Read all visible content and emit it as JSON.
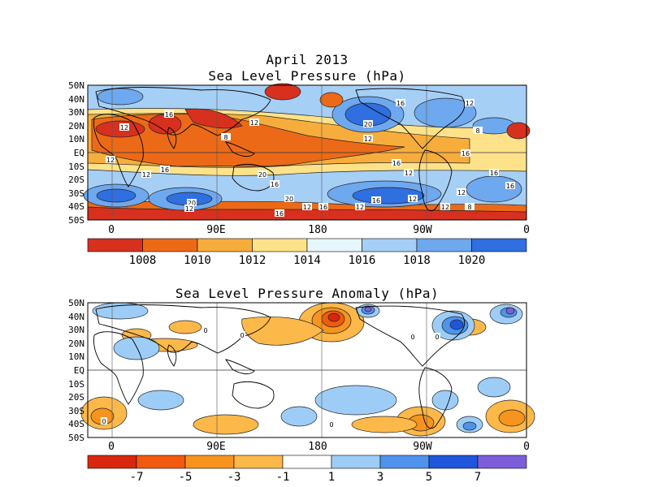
{
  "main_title": "April 2013",
  "panel1": {
    "title": "Sea Level Pressure (hPa)",
    "lat_labels": [
      "50N",
      "40N",
      "30N",
      "20N",
      "10N",
      "EQ",
      "10S",
      "20S",
      "30S",
      "40S",
      "50S"
    ],
    "lon_labels": [
      "0",
      "90E",
      "180",
      "90W",
      "0"
    ],
    "colorbar": {
      "labels": [
        "1008",
        "1010",
        "1012",
        "1014",
        "1016",
        "1018",
        "1020"
      ],
      "colors": [
        "#d7301f",
        "#ec6a17",
        "#f7ad3c",
        "#fde28a",
        "#e6f7fc",
        "#a6cff6",
        "#6ea8ee",
        "#2f6fe0"
      ]
    },
    "contour_labels": [
      "12",
      "16",
      "8",
      "12",
      "20",
      "16",
      "12",
      "12",
      "16",
      "12",
      "8",
      "16",
      "12",
      "12",
      "16",
      "20",
      "16",
      "20",
      "12",
      "16",
      "12",
      "16",
      "12",
      "12",
      "8",
      "16",
      "16",
      "12",
      "20",
      "12",
      "16"
    ]
  },
  "panel2": {
    "title": "Sea Level Pressure Anomaly (hPa)",
    "lat_labels": [
      "50N",
      "40N",
      "30N",
      "20N",
      "10N",
      "EQ",
      "10S",
      "20S",
      "30S",
      "40S",
      "50S"
    ],
    "lon_labels": [
      "0",
      "90E",
      "180",
      "90W",
      "0"
    ],
    "colorbar": {
      "labels": [
        "-7",
        "-5",
        "-3",
        "-1",
        "1",
        "3",
        "5",
        "7"
      ],
      "colors": [
        "#d9260f",
        "#f15a0f",
        "#f7941d",
        "#fdb84a",
        "#ffffff",
        "#9dcdf7",
        "#4f93ec",
        "#1f56dd",
        "#7d5ed9"
      ]
    },
    "contour_labels": [
      "0",
      "0",
      "0",
      "0",
      "0",
      "0"
    ]
  }
}
